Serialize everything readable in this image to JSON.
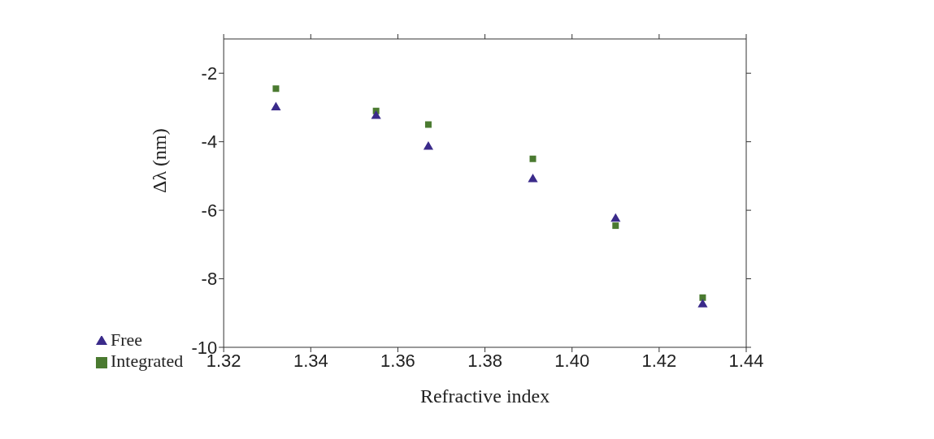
{
  "chart_data": {
    "type": "scatter",
    "xlabel": "Refractive index",
    "ylabel": "Δλ (nm)",
    "xlim": [
      1.32,
      1.44
    ],
    "xticks": [
      {
        "value": 1.32,
        "label": "1.32"
      },
      {
        "value": 1.34,
        "label": "1.34"
      },
      {
        "value": 1.36,
        "label": "1.36"
      },
      {
        "value": 1.38,
        "label": "1.38"
      },
      {
        "value": 1.4,
        "label": "1.40"
      },
      {
        "value": 1.42,
        "label": "1.42"
      },
      {
        "value": 1.44,
        "label": "1.44"
      }
    ],
    "ylim": [
      -10,
      -1
    ],
    "yticks": [
      -10,
      -8,
      -6,
      -4,
      -2
    ],
    "x": [
      1.332,
      1.355,
      1.367,
      1.391,
      1.41,
      1.43
    ],
    "series": [
      {
        "name": "Integrated",
        "color": "#4a7a30",
        "marker": "square",
        "values": [
          -2.45,
          -3.1,
          -3.5,
          -4.5,
          -6.45,
          -8.55
        ]
      },
      {
        "name": "Free",
        "color": "#3a2a8a",
        "marker": "triangle",
        "values": [
          -3.0,
          -3.25,
          -4.15,
          -5.1,
          -6.25,
          -8.75
        ]
      }
    ],
    "grid": false,
    "legend": "bottom left"
  }
}
